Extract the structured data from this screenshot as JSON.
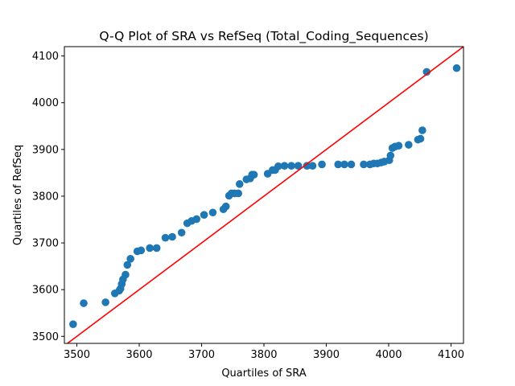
{
  "chart_data": {
    "type": "scatter",
    "title": "Q-Q Plot of SRA vs RefSeq (Total_Coding_Sequences)",
    "xlabel": "Quartiles of SRA",
    "ylabel": "Quartiles of RefSeq",
    "xlim": [
      3480,
      4120
    ],
    "ylim": [
      3485,
      4120
    ],
    "xticks": [
      3500,
      3600,
      3700,
      3800,
      3900,
      4000,
      4100
    ],
    "yticks": [
      3500,
      3600,
      3700,
      3800,
      3900,
      4000,
      4100
    ],
    "grid": false,
    "colors": {
      "points": "#1f77b4",
      "reference_line": "#ff0000"
    },
    "reference_line": {
      "type": "y=x"
    },
    "series": [
      {
        "points": [
          [
            3494,
            3526
          ],
          [
            3511,
            3571
          ],
          [
            3546,
            3573
          ],
          [
            3561,
            3592
          ],
          [
            3568,
            3598
          ],
          [
            3570,
            3602
          ],
          [
            3572,
            3612
          ],
          [
            3574,
            3622
          ],
          [
            3578,
            3632
          ],
          [
            3581,
            3653
          ],
          [
            3586,
            3666
          ],
          [
            3597,
            3682
          ],
          [
            3603,
            3684
          ],
          [
            3617,
            3689
          ],
          [
            3628,
            3689
          ],
          [
            3642,
            3711
          ],
          [
            3653,
            3713
          ],
          [
            3668,
            3722
          ],
          [
            3677,
            3742
          ],
          [
            3684,
            3747
          ],
          [
            3692,
            3751
          ],
          [
            3704,
            3760
          ],
          [
            3718,
            3765
          ],
          [
            3735,
            3772
          ],
          [
            3739,
            3778
          ],
          [
            3744,
            3801
          ],
          [
            3748,
            3806
          ],
          [
            3753,
            3806
          ],
          [
            3759,
            3806
          ],
          [
            3761,
            3826
          ],
          [
            3772,
            3836
          ],
          [
            3778,
            3838
          ],
          [
            3781,
            3846
          ],
          [
            3784,
            3846
          ],
          [
            3806,
            3848
          ],
          [
            3814,
            3856
          ],
          [
            3818,
            3856
          ],
          [
            3823,
            3864
          ],
          [
            3833,
            3865
          ],
          [
            3844,
            3865
          ],
          [
            3855,
            3865
          ],
          [
            3869,
            3865
          ],
          [
            3878,
            3865
          ],
          [
            3893,
            3868
          ],
          [
            3919,
            3868
          ],
          [
            3929,
            3868
          ],
          [
            3940,
            3868
          ],
          [
            3960,
            3868
          ],
          [
            3970,
            3868
          ],
          [
            3976,
            3870
          ],
          [
            3982,
            3870
          ],
          [
            3988,
            3872
          ],
          [
            3993,
            3874
          ],
          [
            4001,
            3877
          ],
          [
            4003,
            3887
          ],
          [
            4006,
            3903
          ],
          [
            4010,
            3906
          ],
          [
            4016,
            3908
          ],
          [
            4032,
            3910
          ],
          [
            4047,
            3921
          ],
          [
            4051,
            3923
          ],
          [
            4054,
            3941
          ],
          [
            4061,
            4066
          ],
          [
            4109,
            4074
          ]
        ]
      }
    ]
  }
}
